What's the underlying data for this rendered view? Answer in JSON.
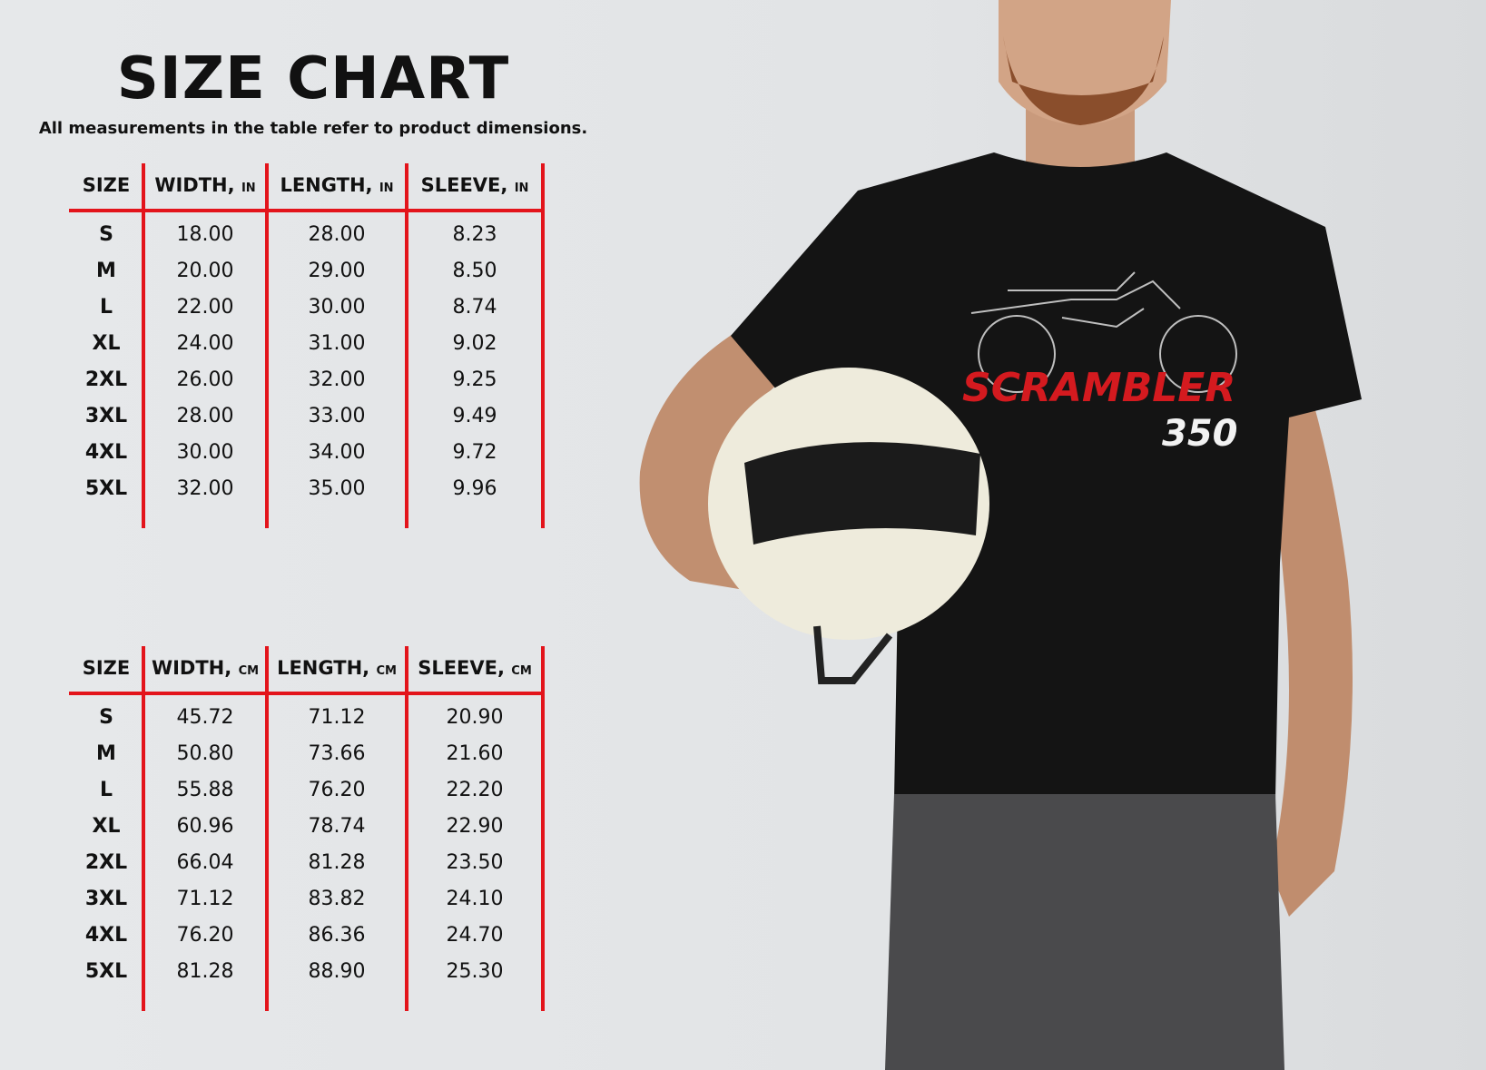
{
  "title": "SIZE CHART",
  "subtitle": "All measurements in the table refer to product dimensions.",
  "accent_color": "#e3141b",
  "tables": [
    {
      "headers": [
        {
          "label": "SIZE",
          "unit": ""
        },
        {
          "label": "WIDTH,",
          "unit": "IN"
        },
        {
          "label": "LENGTH,",
          "unit": "IN"
        },
        {
          "label": "SLEEVE,",
          "unit": "IN"
        }
      ],
      "rows": [
        [
          "S",
          "18.00",
          "28.00",
          "8.23"
        ],
        [
          "M",
          "20.00",
          "29.00",
          "8.50"
        ],
        [
          "L",
          "22.00",
          "30.00",
          "8.74"
        ],
        [
          "XL",
          "24.00",
          "31.00",
          "9.02"
        ],
        [
          "2XL",
          "26.00",
          "32.00",
          "9.25"
        ],
        [
          "3XL",
          "28.00",
          "33.00",
          "9.49"
        ],
        [
          "4XL",
          "30.00",
          "34.00",
          "9.72"
        ],
        [
          "5XL",
          "32.00",
          "35.00",
          "9.96"
        ]
      ]
    },
    {
      "headers": [
        {
          "label": "SIZE",
          "unit": ""
        },
        {
          "label": "WIDTH,",
          "unit": "CM"
        },
        {
          "label": "LENGTH,",
          "unit": "CM"
        },
        {
          "label": "SLEEVE,",
          "unit": "CM"
        }
      ],
      "rows": [
        [
          "S",
          "45.72",
          "71.12",
          "20.90"
        ],
        [
          "M",
          "50.80",
          "73.66",
          "21.60"
        ],
        [
          "L",
          "55.88",
          "76.20",
          "22.20"
        ],
        [
          "XL",
          "60.96",
          "78.74",
          "22.90"
        ],
        [
          "2XL",
          "66.04",
          "81.28",
          "23.50"
        ],
        [
          "3XL",
          "71.12",
          "83.82",
          "24.10"
        ],
        [
          "4XL",
          "76.20",
          "86.36",
          "24.70"
        ],
        [
          "5XL",
          "81.28",
          "88.90",
          "25.30"
        ]
      ]
    }
  ],
  "shirt_print": {
    "line1": "SCRAMBLER",
    "line2": "350",
    "line1_color": "#d41a1f",
    "line2_color": "#f2f2f2"
  }
}
